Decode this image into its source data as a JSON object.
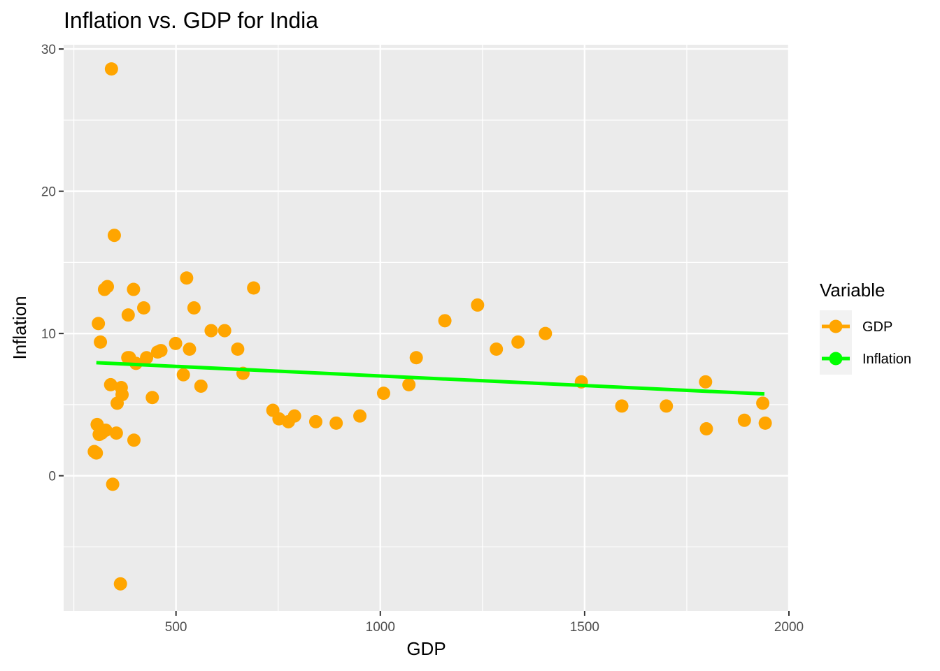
{
  "chart_data": {
    "type": "scatter",
    "title": "Inflation vs. GDP for India",
    "xlabel": "GDP",
    "ylabel": "Inflation",
    "xlim": [
      225,
      2000
    ],
    "ylim": [
      -9.5,
      30.3
    ],
    "x_ticks": [
      500,
      1000,
      1500,
      2000
    ],
    "y_ticks": [
      0,
      10,
      20,
      30
    ],
    "x_tick_labels": [
      "500",
      "1000",
      "1500",
      "2000"
    ],
    "y_tick_labels": [
      "0",
      "10",
      "20",
      "30"
    ],
    "grid": true,
    "panel_background": "#ebebeb",
    "legend": {
      "title": "Variable",
      "position": "right",
      "entries": [
        {
          "label": "GDP",
          "color": "#ffa500"
        },
        {
          "label": "Inflation",
          "color": "#00ff00"
        }
      ]
    },
    "series": [
      {
        "name": "GDP",
        "kind": "points",
        "color": "#ffa500",
        "x": [
          300,
          305,
          307,
          310,
          312,
          315,
          318,
          325,
          328,
          332,
          340,
          342,
          345,
          349,
          354,
          356,
          364,
          366,
          368,
          382,
          383,
          386,
          396,
          397,
          402,
          421,
          428,
          442,
          455,
          463,
          499,
          518,
          526,
          533,
          544,
          561,
          586,
          619,
          651,
          664,
          690,
          737,
          752,
          775,
          790,
          842,
          892,
          950,
          1008,
          1070,
          1088,
          1158,
          1238,
          1284,
          1337,
          1404,
          1492,
          1591,
          1700,
          1796,
          1798,
          1891,
          1936,
          1942
        ],
        "y": [
          1.7,
          1.6,
          3.6,
          10.7,
          2.9,
          9.4,
          3.0,
          13.1,
          3.2,
          13.3,
          6.4,
          28.6,
          -0.6,
          16.9,
          3.0,
          5.1,
          -7.6,
          6.2,
          5.7,
          8.3,
          11.3,
          8.3,
          13.1,
          2.5,
          7.9,
          11.8,
          8.3,
          5.5,
          8.7,
          8.8,
          9.3,
          7.1,
          13.9,
          8.9,
          11.8,
          6.3,
          10.2,
          10.2,
          8.9,
          7.2,
          13.2,
          4.6,
          4.0,
          3.8,
          4.2,
          3.8,
          3.7,
          4.2,
          5.8,
          6.4,
          8.3,
          10.9,
          12.0,
          8.9,
          9.4,
          10.0,
          6.6,
          4.9,
          4.9,
          6.6,
          3.3,
          3.9,
          5.1,
          3.7
        ]
      },
      {
        "name": "Inflation",
        "kind": "trend-line",
        "color": "#00ff00",
        "x": [
          305,
          1940
        ],
        "y": [
          7.95,
          5.75
        ]
      }
    ]
  }
}
